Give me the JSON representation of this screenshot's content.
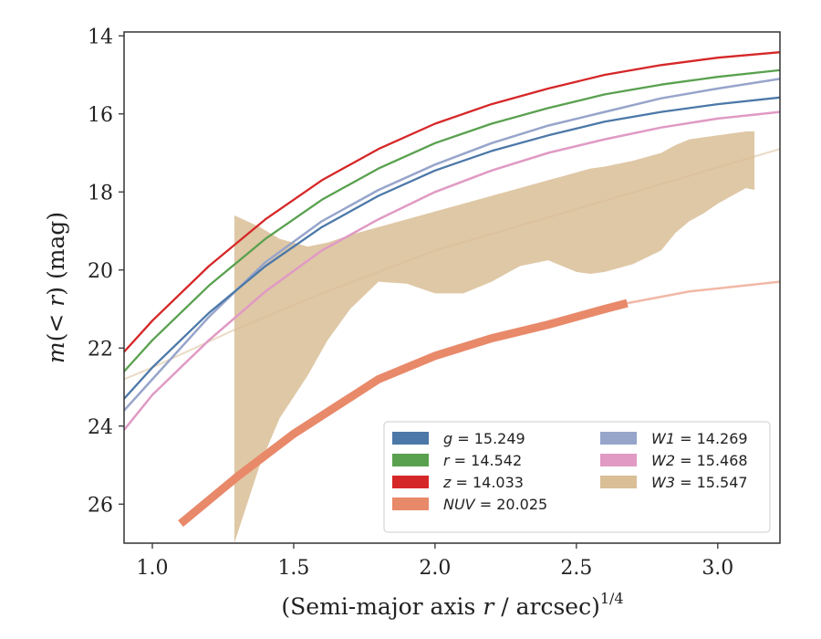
{
  "chart_data": {
    "type": "line",
    "xlabel": "(Semi-major axis r / arcsec)^1/4",
    "xlabel_parts": {
      "pre": "(Semi-major axis ",
      "var": "r",
      "post": " / arcsec)",
      "sup": "1/4"
    },
    "ylabel": "m(<r) (mag)",
    "ylabel_parts": {
      "m": "m",
      "inner": "(< ",
      "r": "r",
      "close": ")",
      "unit": " (mag)"
    },
    "xlim": [
      0.9,
      3.22
    ],
    "ylim": [
      27.0,
      13.9
    ],
    "y_inverted": true,
    "xticks": [
      1.0,
      1.5,
      2.0,
      2.5,
      3.0
    ],
    "xtick_labels": [
      "1.0",
      "1.5",
      "2.0",
      "2.5",
      "3.0"
    ],
    "yticks": [
      14,
      16,
      18,
      20,
      22,
      24,
      26
    ],
    "ytick_labels": [
      "14",
      "16",
      "18",
      "20",
      "22",
      "24",
      "26"
    ],
    "grid": false,
    "legend_position": "lower-right",
    "series": [
      {
        "band": "g",
        "legend_value": "15.249",
        "color": "#4c78a8",
        "x": [
          0.9,
          1.0,
          1.2,
          1.4,
          1.6,
          1.8,
          2.0,
          2.2,
          2.4,
          2.6,
          2.8,
          3.0,
          3.22
        ],
        "y": [
          23.3,
          22.5,
          21.1,
          19.9,
          18.9,
          18.1,
          17.45,
          16.95,
          16.55,
          16.2,
          15.95,
          15.75,
          15.58
        ]
      },
      {
        "band": "r",
        "legend_value": "14.542",
        "color": "#59a14f",
        "x": [
          0.9,
          1.0,
          1.2,
          1.4,
          1.6,
          1.8,
          2.0,
          2.2,
          2.4,
          2.6,
          2.8,
          3.0,
          3.22
        ],
        "y": [
          22.6,
          21.8,
          20.4,
          19.2,
          18.2,
          17.4,
          16.75,
          16.25,
          15.85,
          15.5,
          15.25,
          15.05,
          14.88
        ]
      },
      {
        "band": "z",
        "legend_value": "14.033",
        "color": "#d62728",
        "x": [
          0.9,
          1.0,
          1.2,
          1.4,
          1.6,
          1.8,
          2.0,
          2.2,
          2.4,
          2.6,
          2.8,
          3.0,
          3.22
        ],
        "y": [
          22.1,
          21.3,
          19.9,
          18.7,
          17.7,
          16.9,
          16.25,
          15.75,
          15.35,
          15.0,
          14.75,
          14.56,
          14.42
        ]
      },
      {
        "band": "NUV",
        "legend_value": "20.025",
        "color": "#e8896a",
        "x": [
          1.1,
          1.3,
          1.5,
          1.8,
          2.0,
          2.2,
          2.4,
          2.6,
          2.68,
          2.9,
          3.22
        ],
        "y": [
          26.5,
          25.3,
          24.2,
          22.8,
          22.2,
          21.75,
          21.4,
          21.0,
          20.85,
          20.55,
          20.3
        ],
        "solid_until_x": 2.68
      },
      {
        "band": "W1",
        "legend_value": "14.269",
        "color": "#97a5cb",
        "x": [
          0.9,
          1.0,
          1.2,
          1.4,
          1.6,
          1.8,
          2.0,
          2.2,
          2.4,
          2.6,
          2.8,
          3.0,
          3.22
        ],
        "y": [
          23.6,
          22.8,
          21.2,
          19.8,
          18.75,
          17.95,
          17.3,
          16.75,
          16.3,
          15.95,
          15.6,
          15.35,
          15.1
        ]
      },
      {
        "band": "W2",
        "legend_value": "15.468",
        "color": "#e09ac4",
        "x": [
          0.9,
          1.0,
          1.2,
          1.4,
          1.6,
          1.8,
          2.0,
          2.2,
          2.4,
          2.6,
          2.8,
          3.0,
          3.22
        ],
        "y": [
          24.1,
          23.2,
          21.8,
          20.55,
          19.5,
          18.7,
          18.0,
          17.45,
          17.0,
          16.65,
          16.35,
          16.12,
          15.95
        ]
      },
      {
        "band": "W3",
        "legend_value": "15.547",
        "color": "#d9be96",
        "x": [
          0.9,
          1.0,
          1.3,
          1.6,
          2.0,
          2.4,
          2.8,
          3.22
        ],
        "y": [
          22.8,
          22.5,
          21.5,
          20.6,
          19.5,
          18.65,
          17.8,
          16.9
        ],
        "band_x": [
          1.29,
          1.38,
          1.45,
          1.55,
          1.62,
          1.7,
          1.8,
          1.9,
          2.0,
          2.1,
          2.2,
          2.3,
          2.4,
          2.45,
          2.5,
          2.55,
          2.6,
          2.7,
          2.8,
          2.85,
          2.9,
          2.95,
          3.0,
          3.05,
          3.1,
          3.13
        ],
        "band_upper": [
          18.6,
          18.9,
          19.2,
          19.4,
          19.3,
          19.1,
          18.9,
          18.7,
          18.5,
          18.3,
          18.1,
          17.9,
          17.7,
          17.6,
          17.5,
          17.4,
          17.35,
          17.2,
          17.0,
          16.8,
          16.65,
          16.6,
          16.55,
          16.5,
          16.45,
          16.45
        ],
        "band_lower": [
          27.0,
          25.0,
          23.8,
          22.7,
          21.8,
          21.0,
          20.3,
          20.35,
          20.6,
          20.6,
          20.3,
          19.9,
          19.75,
          19.9,
          20.05,
          20.1,
          20.05,
          19.85,
          19.5,
          19.05,
          18.75,
          18.55,
          18.3,
          18.1,
          17.9,
          17.95
        ]
      }
    ],
    "legend_left": [
      "g",
      "r",
      "z",
      "NUV"
    ],
    "legend_right": [
      "W1",
      "W2",
      "W3"
    ]
  }
}
